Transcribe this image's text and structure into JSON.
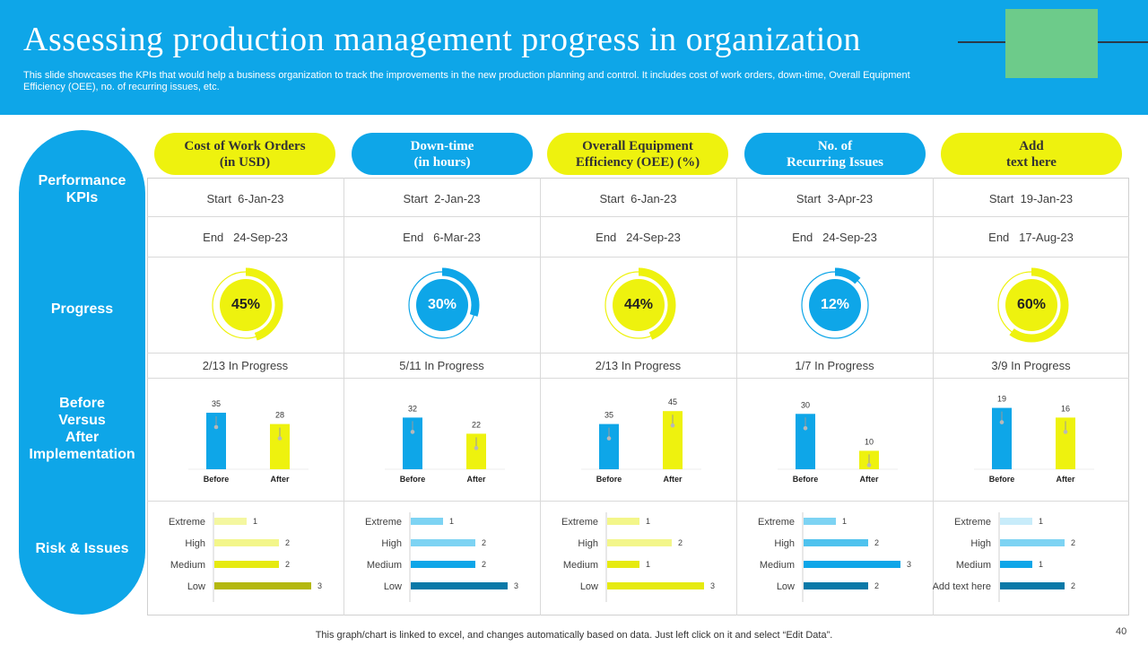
{
  "header": {
    "title": "Assessing production management progress in organization",
    "subtitle": "This slide showcases the KPIs that would help a business organization to track the improvements in the new production planning and control. It includes cost of work orders, down-time, Overall Equipment Efficiency (OEE), no. of recurring issues, etc."
  },
  "row_labels": {
    "kpis": "Performance\nKPIs",
    "progress": "Progress",
    "before_after": "Before\nVersus\nAfter\nImplementation",
    "risk": "Risk & Issues"
  },
  "footer": "This graph/chart is linked to excel,  and changes automatically based on data. Just left click on it and select “Edit Data”.",
  "page_number": "40",
  "colors": {
    "blue": "#0ea6e8",
    "yellow": "#eef20e",
    "green": "#6dcb8a"
  },
  "kpis": [
    {
      "name": "Cost of Work Orders\n(in USD)",
      "style": "yellow",
      "start": "Start  6-Jan-23",
      "end": "End   24-Sep-23",
      "progress_label": "45%",
      "progress": 45,
      "status": "2/13 In Progress"
    },
    {
      "name": "Down-time\n(in hours)",
      "style": "blue",
      "start": "Start  2-Jan-23",
      "end": "End   6-Mar-23",
      "progress_label": "30%",
      "progress": 30,
      "status": "5/11 In Progress"
    },
    {
      "name": "Overall Equipment\nEfficiency (OEE) (%)",
      "style": "yellow",
      "start": "Start  6-Jan-23",
      "end": "End   24-Sep-23",
      "progress_label": "44%",
      "progress": 44,
      "status": "2/13 In Progress"
    },
    {
      "name": "No. of\nRecurring Issues",
      "style": "blue",
      "start": "Start  3-Apr-23",
      "end": "End   24-Sep-23",
      "progress_label": "12%",
      "progress": 12,
      "status": "1/7 In Progress"
    },
    {
      "name": "Add\ntext here",
      "style": "yellow",
      "start": "Start  19-Jan-23",
      "end": "End   17-Aug-23",
      "progress_label": "60%",
      "progress": 60,
      "status": "3/9 In Progress"
    }
  ],
  "chart_data": [
    {
      "type": "bar",
      "categories": [
        "Before",
        "After"
      ],
      "values": [
        35,
        28
      ],
      "ylim": [
        0,
        40
      ]
    },
    {
      "type": "bar",
      "categories": [
        "Before",
        "After"
      ],
      "values": [
        32,
        22
      ],
      "ylim": [
        0,
        40
      ]
    },
    {
      "type": "bar",
      "categories": [
        "Before",
        "After"
      ],
      "values": [
        35,
        45
      ],
      "ylim": [
        0,
        50
      ]
    },
    {
      "type": "bar",
      "categories": [
        "Before",
        "After"
      ],
      "values": [
        30,
        10
      ],
      "ylim": [
        0,
        35
      ]
    },
    {
      "type": "bar",
      "categories": [
        "Before",
        "After"
      ],
      "values": [
        19,
        16
      ],
      "ylim": [
        0,
        20
      ]
    },
    {
      "type": "bar",
      "orientation": "horizontal",
      "categories": [
        "Extreme",
        "High",
        "Medium",
        "Low"
      ],
      "values": [
        1,
        2,
        2,
        3
      ],
      "colors": [
        "#f4f7a0",
        "#f3f68a",
        "#e6ea10",
        "#b4b80e"
      ]
    },
    {
      "type": "bar",
      "orientation": "horizontal",
      "categories": [
        "Extreme",
        "High",
        "Medium",
        "Low"
      ],
      "values": [
        1,
        2,
        2,
        3
      ],
      "colors": [
        "#7dd3f3",
        "#7dd3f3",
        "#0ea6e8",
        "#0a79a8"
      ]
    },
    {
      "type": "bar",
      "orientation": "horizontal",
      "categories": [
        "Extreme",
        "High",
        "Medium",
        "Low"
      ],
      "values": [
        1,
        2,
        1,
        3
      ],
      "colors": [
        "#f3f68a",
        "#f3f68a",
        "#e6ea10",
        "#e6ea10"
      ]
    },
    {
      "type": "bar",
      "orientation": "horizontal",
      "categories": [
        "Extreme",
        "High",
        "Medium",
        "Low"
      ],
      "values": [
        1,
        2,
        3,
        2
      ],
      "colors": [
        "#7dd3f3",
        "#4fc2ee",
        "#0ea6e8",
        "#0a79a8"
      ]
    },
    {
      "type": "bar",
      "orientation": "horizontal",
      "categories": [
        "Extreme",
        "High",
        "Medium",
        "Add text here"
      ],
      "values": [
        1,
        2,
        1,
        2
      ],
      "colors": [
        "#c8ecfa",
        "#7dd3f3",
        "#0ea6e8",
        "#0a79a8"
      ]
    }
  ]
}
